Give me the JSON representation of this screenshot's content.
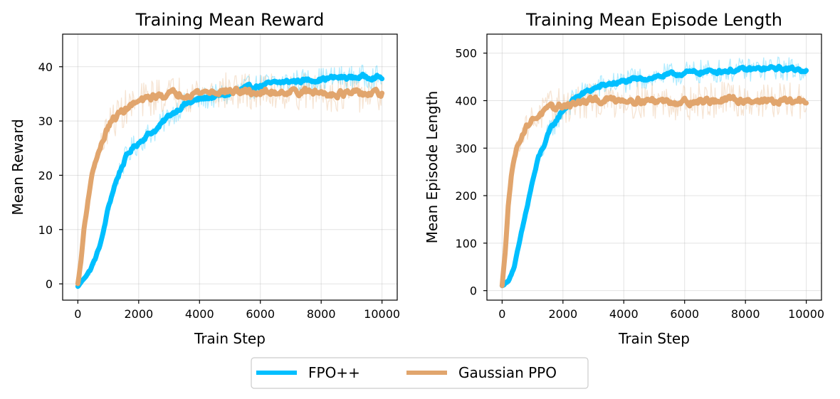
{
  "colors": {
    "fpo": "#00bfff",
    "ppo": "#e1a56d"
  },
  "legend": {
    "items": [
      {
        "label": "FPO++",
        "color": "#00bfff"
      },
      {
        "label": "Gaussian PPO",
        "color": "#e1a56d"
      }
    ],
    "placement": "bottom-center"
  },
  "chart_data": [
    {
      "type": "line",
      "title": "Training Mean Reward",
      "xlabel": "Train Step",
      "ylabel": "Mean Reward",
      "xlim": [
        -500,
        10500
      ],
      "ylim": [
        -3,
        46
      ],
      "xticks": [
        0,
        2000,
        4000,
        6000,
        8000,
        10000
      ],
      "yticks": [
        0,
        10,
        20,
        30,
        40
      ],
      "grid": true,
      "series": [
        {
          "name": "FPO++",
          "color": "#00bfff",
          "x": [
            0,
            200,
            400,
            600,
            800,
            1000,
            1200,
            1400,
            1600,
            1800,
            2000,
            2300,
            2600,
            3000,
            3500,
            4000,
            4500,
            5000,
            5500,
            6000,
            6500,
            7000,
            7500,
            8000,
            8500,
            9000,
            9500,
            10000
          ],
          "y": [
            -0.5,
            1.0,
            2.5,
            5.0,
            8.5,
            14.0,
            18.0,
            21.0,
            23.5,
            25.0,
            26.0,
            27.5,
            28.5,
            31.0,
            33.0,
            34.0,
            34.5,
            35.0,
            36.0,
            36.5,
            37.0,
            37.3,
            37.5,
            37.7,
            38.0,
            38.0,
            38.2,
            38.0
          ]
        },
        {
          "name": "Gaussian PPO",
          "color": "#e1a56d",
          "x": [
            0,
            100,
            200,
            300,
            400,
            500,
            600,
            800,
            1000,
            1200,
            1500,
            1800,
            2000,
            2500,
            3000,
            3500,
            4000,
            5000,
            6000,
            7000,
            8000,
            9000,
            10000
          ],
          "y": [
            0,
            4,
            10,
            14,
            18,
            21,
            23,
            26,
            29,
            30.5,
            32,
            33,
            33.5,
            34.5,
            35,
            35,
            35.3,
            35.5,
            35.2,
            35.5,
            35.2,
            35.0,
            35.0
          ]
        }
      ]
    },
    {
      "type": "line",
      "title": "Training Mean Episode Length",
      "xlabel": "Train Step",
      "ylabel": "Mean Episode Length",
      "xlim": [
        -500,
        10500
      ],
      "ylim": [
        -20,
        540
      ],
      "xticks": [
        0,
        2000,
        4000,
        6000,
        8000,
        10000
      ],
      "yticks": [
        0,
        100,
        200,
        300,
        400,
        500
      ],
      "grid": true,
      "series": [
        {
          "name": "FPO++",
          "color": "#00bfff",
          "x": [
            0,
            200,
            400,
            600,
            800,
            1000,
            1200,
            1400,
            1600,
            1800,
            2000,
            2500,
            3000,
            3500,
            4000,
            5000,
            6000,
            7000,
            8000,
            9000,
            10000
          ],
          "y": [
            10,
            20,
            50,
            110,
            170,
            230,
            280,
            310,
            340,
            360,
            380,
            410,
            425,
            435,
            440,
            450,
            458,
            462,
            465,
            468,
            465
          ]
        },
        {
          "name": "Gaussian PPO",
          "color": "#e1a56d",
          "x": [
            0,
            100,
            200,
            300,
            400,
            500,
            600,
            800,
            1000,
            1200,
            1500,
            2000,
            2500,
            3000,
            3500,
            4000,
            5000,
            6000,
            7000,
            8000,
            9000,
            10000
          ],
          "y": [
            10,
            80,
            180,
            240,
            280,
            305,
            320,
            345,
            360,
            370,
            380,
            390,
            395,
            400,
            402,
            403,
            400,
            398,
            400,
            402,
            398,
            400
          ]
        }
      ]
    }
  ]
}
